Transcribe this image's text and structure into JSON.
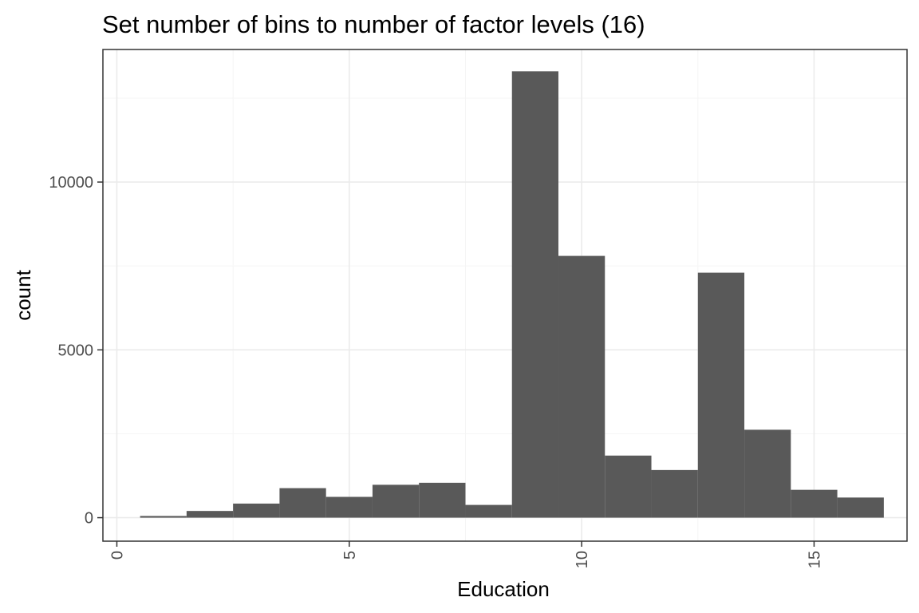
{
  "chart_data": {
    "type": "bar",
    "title": "Set number of bins to number of factor levels (16)",
    "xlabel": "Education",
    "ylabel": "count",
    "xlim": [
      -0.3,
      17.0
    ],
    "ylim": [
      -700,
      13950
    ],
    "x_ticks": [
      0,
      5,
      10,
      15
    ],
    "x_tick_labels": [
      "0",
      "5",
      "10",
      "15"
    ],
    "y_ticks": [
      0,
      5000,
      10000
    ],
    "y_tick_labels": [
      "0",
      "5000",
      "10000"
    ],
    "bin_width": 1,
    "bin_centers": [
      1,
      2,
      3,
      4,
      5,
      6,
      7,
      8,
      9,
      10,
      11,
      12,
      13,
      14,
      15,
      16
    ],
    "values": [
      50,
      200,
      420,
      880,
      620,
      980,
      1040,
      380,
      13300,
      7800,
      1850,
      1420,
      7300,
      2620,
      830,
      600
    ],
    "grid": true,
    "legend": "none",
    "colors": {
      "bar": "#595959",
      "grid_major": "#ebebeb",
      "grid_minor": "#f5f5f5",
      "panel_border": "#333333",
      "tick_text": "#4d4d4d"
    }
  }
}
